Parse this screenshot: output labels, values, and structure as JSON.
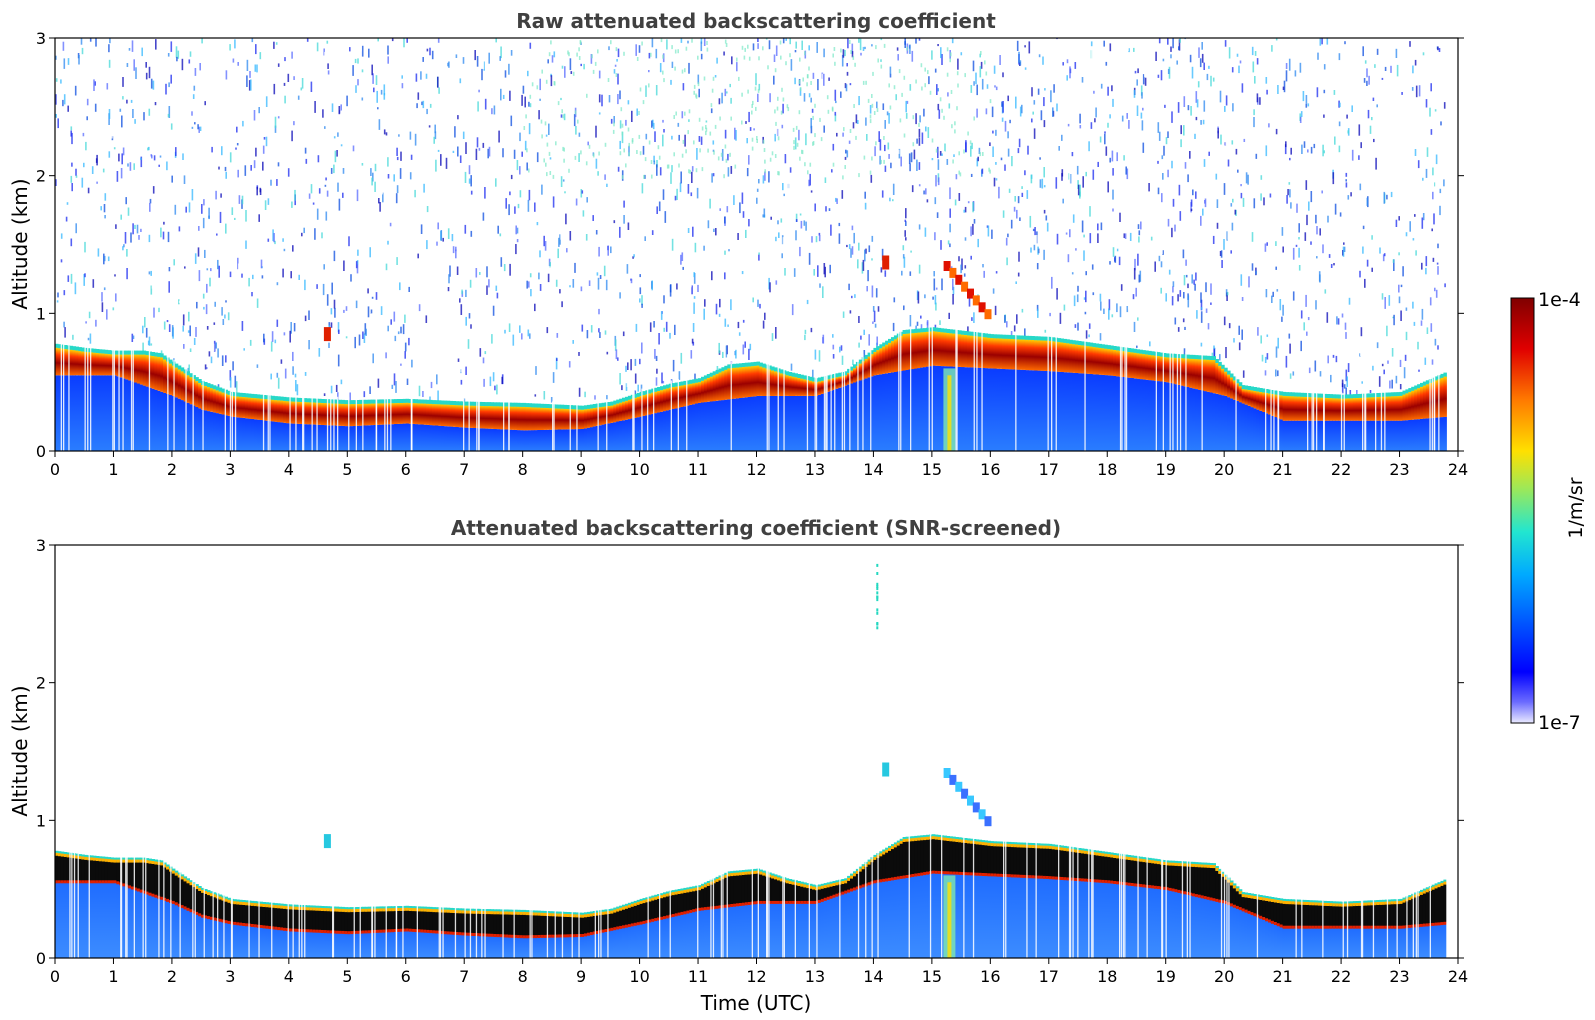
{
  "chart_data": [
    {
      "type": "heatmap",
      "title": "Raw attenuated backscattering coefficient",
      "xlabel": "",
      "ylabel": "Altitude (km)",
      "xlim": [
        0,
        24
      ],
      "ylim": [
        0,
        3
      ],
      "x_ticks": [
        "0",
        "1",
        "2",
        "3",
        "4",
        "5",
        "6",
        "7",
        "8",
        "9",
        "10",
        "11",
        "12",
        "13",
        "14",
        "15",
        "16",
        "17",
        "18",
        "19",
        "20",
        "21",
        "22",
        "23",
        "24"
      ],
      "y_ticks": [
        "0",
        "1",
        "2",
        "3"
      ],
      "layer_top_km": [
        [
          0,
          0.75
        ],
        [
          0.5,
          0.72
        ],
        [
          1,
          0.7
        ],
        [
          1.5,
          0.7
        ],
        [
          1.8,
          0.68
        ],
        [
          2,
          0.62
        ],
        [
          2.5,
          0.48
        ],
        [
          3,
          0.4
        ],
        [
          4,
          0.36
        ],
        [
          5,
          0.34
        ],
        [
          6,
          0.35
        ],
        [
          7,
          0.33
        ],
        [
          8,
          0.32
        ],
        [
          9,
          0.3
        ],
        [
          9.5,
          0.33
        ],
        [
          10,
          0.4
        ],
        [
          10.5,
          0.46
        ],
        [
          11,
          0.5
        ],
        [
          11.5,
          0.6
        ],
        [
          12,
          0.62
        ],
        [
          12.5,
          0.55
        ],
        [
          13,
          0.5
        ],
        [
          13.5,
          0.55
        ],
        [
          14,
          0.72
        ],
        [
          14.5,
          0.85
        ],
        [
          15,
          0.87
        ],
        [
          16,
          0.82
        ],
        [
          17,
          0.8
        ],
        [
          18,
          0.74
        ],
        [
          19,
          0.68
        ],
        [
          19.8,
          0.66
        ],
        [
          20.3,
          0.45
        ],
        [
          21,
          0.4
        ],
        [
          22,
          0.38
        ],
        [
          23,
          0.4
        ],
        [
          23.8,
          0.55
        ]
      ],
      "layer_bottom_km": [
        [
          0,
          0.55
        ],
        [
          1,
          0.55
        ],
        [
          2,
          0.4
        ],
        [
          2.5,
          0.3
        ],
        [
          3,
          0.25
        ],
        [
          4,
          0.2
        ],
        [
          5,
          0.18
        ],
        [
          6,
          0.2
        ],
        [
          7,
          0.17
        ],
        [
          8,
          0.15
        ],
        [
          9,
          0.16
        ],
        [
          10,
          0.25
        ],
        [
          11,
          0.35
        ],
        [
          12,
          0.4
        ],
        [
          13,
          0.4
        ],
        [
          14,
          0.55
        ],
        [
          15,
          0.62
        ],
        [
          16,
          0.6
        ],
        [
          17,
          0.58
        ],
        [
          18,
          0.55
        ],
        [
          19,
          0.5
        ],
        [
          20,
          0.4
        ],
        [
          21,
          0.22
        ],
        [
          22,
          0.22
        ],
        [
          23,
          0.22
        ],
        [
          23.8,
          0.25
        ]
      ]
    },
    {
      "type": "heatmap",
      "title": "Attenuated backscattering coefficient (SNR-screened)",
      "xlabel": "Time (UTC)",
      "ylabel": "Altitude (km)",
      "xlim": [
        0,
        24
      ],
      "ylim": [
        0,
        3
      ],
      "x_ticks": [
        "0",
        "1",
        "2",
        "3",
        "4",
        "5",
        "6",
        "7",
        "8",
        "9",
        "10",
        "11",
        "12",
        "13",
        "14",
        "15",
        "16",
        "17",
        "18",
        "19",
        "20",
        "21",
        "22",
        "23",
        "24"
      ],
      "y_ticks": [
        "0",
        "1",
        "2",
        "3"
      ]
    }
  ],
  "colorbar": {
    "max_label": "1e-4",
    "min_label": "1e-7",
    "unit_label": "1/m/sr",
    "colormap": "jet",
    "colors": [
      "#eaeaff",
      "#0000ff",
      "#00aaff",
      "#22e6d0",
      "#9be85a",
      "#ffe000",
      "#ff7a00",
      "#e00000",
      "#800000"
    ]
  }
}
